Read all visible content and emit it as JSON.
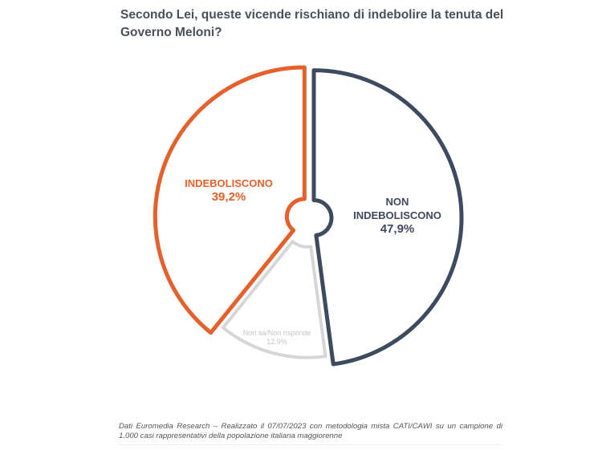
{
  "chart_data": {
    "type": "pie",
    "title": "Secondo Lei, queste vicende rischiano di indebolire la tenuta del Governo Meloni?",
    "slices": [
      {
        "label": "NON INDEBOLISCONO",
        "value": 47.9,
        "display": "47,9%",
        "color": "#3e4a5e"
      },
      {
        "label": "Non sa/Non risponde",
        "value": 12.9,
        "display": "12.9%",
        "color": "#d6d6d6"
      },
      {
        "label": "INDEBOLISCONO",
        "value": 39.2,
        "display": "39,2%",
        "color": "#e5602a"
      }
    ]
  },
  "footer": "Dati Euromedia Research – Realizzato il 07/07/2023 con metodologia mista CATI/CAWI su un campione di 1.000 casi rappresentativi della popolazione italiana maggiorenne"
}
